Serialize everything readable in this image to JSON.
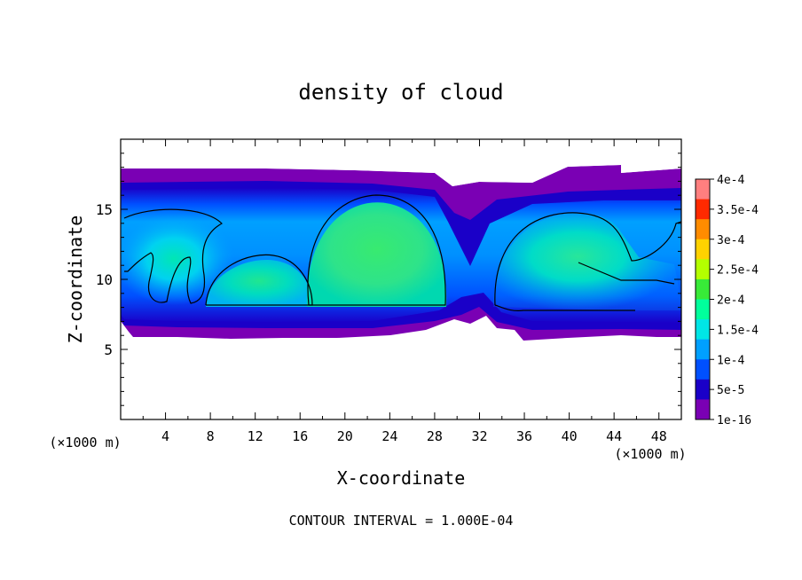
{
  "chart_data": {
    "type": "heatmap",
    "title": "density of cloud",
    "xlabel": "X-coordinate",
    "ylabel": "Z-coordinate",
    "x_unit_left": "(×1000 m)",
    "x_unit_right": "(×1000 m)",
    "footer": "CONTOUR INTERVAL = 1.000E-04",
    "xlim": [
      0,
      50
    ],
    "ylim": [
      0,
      20
    ],
    "x_ticks": [
      "4",
      "8",
      "12",
      "16",
      "20",
      "24",
      "28",
      "32",
      "36",
      "40",
      "44",
      "48"
    ],
    "y_ticks": [
      "5",
      "10",
      "15"
    ],
    "colorbar": {
      "labels": [
        "4e-4",
        "3.5e-4",
        "3e-4",
        "2.5e-4",
        "2e-4",
        "1.5e-4",
        "1e-4",
        "5e-5",
        "1e-16"
      ],
      "colors": [
        "#ff7f7f",
        "#ff2a00",
        "#ff8c00",
        "#ffd200",
        "#b4ff00",
        "#38ea38",
        "#00ff9c",
        "#00e6e6",
        "#00a0ff",
        "#0050ff",
        "#1a00c8",
        "#7a00b4"
      ]
    },
    "contour_interval": "1.000E-04",
    "field": {
      "background": "#ffffff",
      "cloud_extent": {
        "x": [
          0,
          50
        ],
        "z": [
          6,
          17.7
        ]
      },
      "cells": [
        {
          "name": "left cell",
          "x_center": 4,
          "z_center": 11.5,
          "max_value": "1.5e-4"
        },
        {
          "name": "low dome",
          "x_center": 12,
          "z_center": 10.3,
          "max_value": "1.5e-4"
        },
        {
          "name": "large dome",
          "x_center": 22.5,
          "z_center": 12.5,
          "max_value": "2e-4"
        },
        {
          "name": "right cell",
          "x_center": 38.5,
          "z_center": 12,
          "max_value": "1.5e-4"
        }
      ]
    }
  }
}
